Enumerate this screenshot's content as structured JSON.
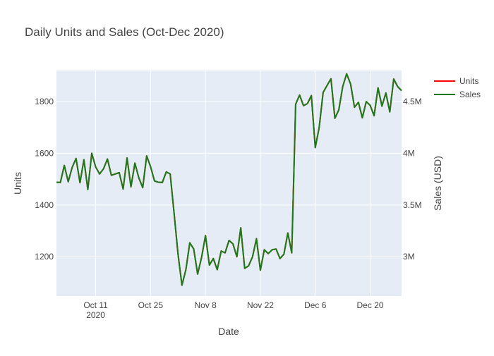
{
  "chart_data": {
    "type": "line",
    "title": "Daily Units and Sales (Oct-Dec 2020)",
    "xlabel": "Date",
    "ylabel": "Units",
    "y2label": "Sales (USD)",
    "x_ticks": [
      {
        "date": "2020-10-11",
        "label": "Oct 11",
        "sublabel": "2020"
      },
      {
        "date": "2020-10-25",
        "label": "Oct 25",
        "sublabel": ""
      },
      {
        "date": "2020-11-08",
        "label": "Nov 8",
        "sublabel": ""
      },
      {
        "date": "2020-11-22",
        "label": "Nov 22",
        "sublabel": ""
      },
      {
        "date": "2020-12-06",
        "label": "Dec 6",
        "sublabel": ""
      },
      {
        "date": "2020-12-20",
        "label": "Dec 20",
        "sublabel": ""
      }
    ],
    "y_ticks": [
      {
        "value": 1200,
        "label": "1200"
      },
      {
        "value": 1400,
        "label": "1400"
      },
      {
        "value": 1600,
        "label": "1600"
      },
      {
        "value": 1800,
        "label": "1800"
      }
    ],
    "y2_ticks": [
      {
        "value": 3000000,
        "label": "3M"
      },
      {
        "value": 3500000,
        "label": "3.5M"
      },
      {
        "value": 4000000,
        "label": "4M"
      },
      {
        "value": 4500000,
        "label": "4.5M"
      }
    ],
    "xlim": [
      "2020-10-01",
      "2020-12-28"
    ],
    "ylim": [
      1048,
      1920
    ],
    "y2lim": [
      2620000,
      4800000
    ],
    "legend": {
      "position": "top-right",
      "entries": [
        {
          "name": "Units",
          "color": "#ff0000"
        },
        {
          "name": "Sales",
          "color": "#1a7a1a"
        }
      ]
    },
    "grid": true,
    "colors": {
      "plot_bg": "#e5ecf6",
      "grid": "#ffffff",
      "units": "#ff0000",
      "sales": "#1a7a1a",
      "text": "#444444",
      "title": "#444444"
    },
    "series": [
      {
        "name": "Units",
        "axis": "y",
        "color": "#ff0000",
        "x": [
          "2020-10-01",
          "2020-10-02",
          "2020-10-03",
          "2020-10-04",
          "2020-10-05",
          "2020-10-06",
          "2020-10-07",
          "2020-10-08",
          "2020-10-09",
          "2020-10-10",
          "2020-10-11",
          "2020-10-12",
          "2020-10-13",
          "2020-10-14",
          "2020-10-15",
          "2020-10-16",
          "2020-10-17",
          "2020-10-18",
          "2020-10-19",
          "2020-10-20",
          "2020-10-21",
          "2020-10-22",
          "2020-10-23",
          "2020-10-24",
          "2020-10-25",
          "2020-10-26",
          "2020-10-27",
          "2020-10-28",
          "2020-10-29",
          "2020-10-30",
          "2020-10-31",
          "2020-11-01",
          "2020-11-02",
          "2020-11-03",
          "2020-11-04",
          "2020-11-05",
          "2020-11-06",
          "2020-11-07",
          "2020-11-08",
          "2020-11-09",
          "2020-11-10",
          "2020-11-11",
          "2020-11-12",
          "2020-11-13",
          "2020-11-14",
          "2020-11-15",
          "2020-11-16",
          "2020-11-17",
          "2020-11-18",
          "2020-11-19",
          "2020-11-20",
          "2020-11-21",
          "2020-11-22",
          "2020-11-23",
          "2020-11-24",
          "2020-11-25",
          "2020-11-26",
          "2020-11-27",
          "2020-11-28",
          "2020-11-29",
          "2020-11-30",
          "2020-12-01",
          "2020-12-02",
          "2020-12-03",
          "2020-12-04",
          "2020-12-05",
          "2020-12-06",
          "2020-12-07",
          "2020-12-08",
          "2020-12-09",
          "2020-12-10",
          "2020-12-11",
          "2020-12-12",
          "2020-12-13",
          "2020-12-14",
          "2020-12-15",
          "2020-12-16",
          "2020-12-17",
          "2020-12-18",
          "2020-12-19",
          "2020-12-20",
          "2020-12-21",
          "2020-12-22",
          "2020-12-23",
          "2020-12-24",
          "2020-12-25",
          "2020-12-26",
          "2020-12-27",
          "2020-12-28"
        ],
        "y": [
          1488,
          1487,
          1553,
          1490,
          1545,
          1580,
          1486,
          1575,
          1460,
          1600,
          1547,
          1520,
          1540,
          1578,
          1515,
          1520,
          1525,
          1462,
          1582,
          1470,
          1562,
          1505,
          1467,
          1590,
          1548,
          1493,
          1488,
          1487,
          1528,
          1520,
          1368,
          1210,
          1090,
          1150,
          1254,
          1230,
          1133,
          1197,
          1282,
          1168,
          1193,
          1150,
          1222,
          1215,
          1263,
          1250,
          1200,
          1312,
          1155,
          1165,
          1200,
          1270,
          1148,
          1227,
          1212,
          1227,
          1230,
          1193,
          1210,
          1292,
          1215,
          1790,
          1825,
          1784,
          1792,
          1823,
          1622,
          1700,
          1835,
          1862,
          1888,
          1735,
          1768,
          1858,
          1907,
          1868,
          1778,
          1797,
          1737,
          1800,
          1785,
          1745,
          1853,
          1782,
          1833,
          1760,
          1887,
          1858,
          1842
        ]
      },
      {
        "name": "Sales",
        "axis": "y2",
        "color": "#1a7a1a",
        "x": [
          "2020-10-01",
          "2020-10-02",
          "2020-10-03",
          "2020-10-04",
          "2020-10-05",
          "2020-10-06",
          "2020-10-07",
          "2020-10-08",
          "2020-10-09",
          "2020-10-10",
          "2020-10-11",
          "2020-10-12",
          "2020-10-13",
          "2020-10-14",
          "2020-10-15",
          "2020-10-16",
          "2020-10-17",
          "2020-10-18",
          "2020-10-19",
          "2020-10-20",
          "2020-10-21",
          "2020-10-22",
          "2020-10-23",
          "2020-10-24",
          "2020-10-25",
          "2020-10-26",
          "2020-10-27",
          "2020-10-28",
          "2020-10-29",
          "2020-10-30",
          "2020-10-31",
          "2020-11-01",
          "2020-11-02",
          "2020-11-03",
          "2020-11-04",
          "2020-11-05",
          "2020-11-06",
          "2020-11-07",
          "2020-11-08",
          "2020-11-09",
          "2020-11-10",
          "2020-11-11",
          "2020-11-12",
          "2020-11-13",
          "2020-11-14",
          "2020-11-15",
          "2020-11-16",
          "2020-11-17",
          "2020-11-18",
          "2020-11-19",
          "2020-11-20",
          "2020-11-21",
          "2020-11-22",
          "2020-11-23",
          "2020-11-24",
          "2020-11-25",
          "2020-11-26",
          "2020-11-27",
          "2020-11-28",
          "2020-11-29",
          "2020-11-30",
          "2020-12-01",
          "2020-12-02",
          "2020-12-03",
          "2020-12-04",
          "2020-12-05",
          "2020-12-06",
          "2020-12-07",
          "2020-12-08",
          "2020-12-09",
          "2020-12-10",
          "2020-12-11",
          "2020-12-12",
          "2020-12-13",
          "2020-12-14",
          "2020-12-15",
          "2020-12-16",
          "2020-12-17",
          "2020-12-18",
          "2020-12-19",
          "2020-12-20",
          "2020-12-21",
          "2020-12-22",
          "2020-12-23",
          "2020-12-24",
          "2020-12-25",
          "2020-12-26",
          "2020-12-27",
          "2020-12-28"
        ],
        "y": [
          3720000,
          3718000,
          3883000,
          3725000,
          3863000,
          3950000,
          3715000,
          3938000,
          3650000,
          4000000,
          3868000,
          3800000,
          3850000,
          3945000,
          3788000,
          3800000,
          3813000,
          3655000,
          3955000,
          3675000,
          3905000,
          3763000,
          3668000,
          3975000,
          3870000,
          3733000,
          3720000,
          3718000,
          3820000,
          3800000,
          3420000,
          3025000,
          2725000,
          2875000,
          3135000,
          3075000,
          2833000,
          2993000,
          3205000,
          2920000,
          2983000,
          2875000,
          3055000,
          3038000,
          3158000,
          3125000,
          3000000,
          3280000,
          2888000,
          2913000,
          3000000,
          3175000,
          2870000,
          3068000,
          3030000,
          3068000,
          3075000,
          2983000,
          3025000,
          3230000,
          3038000,
          4475000,
          4563000,
          4460000,
          4480000,
          4558000,
          4055000,
          4250000,
          4588000,
          4655000,
          4720000,
          4338000,
          4420000,
          4645000,
          4768000,
          4670000,
          4445000,
          4493000,
          4343000,
          4500000,
          4463000,
          4363000,
          4633000,
          4455000,
          4583000,
          4400000,
          4718000,
          4645000,
          4605000
        ]
      }
    ]
  }
}
